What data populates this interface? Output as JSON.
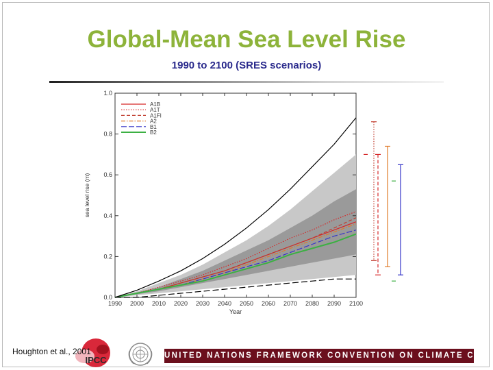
{
  "slide": {
    "title": "Global-Mean Sea Level Rise",
    "subtitle": "1990 to 2100 (SRES scenarios)",
    "reference": "Houghton et al., 2001",
    "logo_text": "IPCC",
    "footer_text": "UNITED NATIONS FRAMEWORK CONVENTION ON CLIMATE CHANGE"
  },
  "colors": {
    "title": "#8db33a",
    "subtitle": "#2a2a8c",
    "footer_band": "#6b0f1d",
    "envelope_outer": "#c8c8c8",
    "envelope_inner": "#9a9a9a",
    "A1B": "#d62728",
    "A1T": "#d62728",
    "A1FI": "#c0392b",
    "A2": "#e07b2a",
    "B1": "#3535c8",
    "B2": "#3cb043"
  },
  "chart_data": {
    "type": "line",
    "title": "",
    "xlabel": "Year",
    "ylabel": "sea level rise (m)",
    "xlim": [
      1990,
      2100
    ],
    "ylim": [
      0.0,
      1.0
    ],
    "xticks": [
      "1990",
      "2000",
      "2010",
      "2020",
      "2030",
      "2040",
      "2050",
      "2060",
      "2070",
      "2080",
      "2090",
      "2100"
    ],
    "yticks": [
      "0.0",
      "0.2",
      "0.4",
      "0.6",
      "0.8",
      "1.0"
    ],
    "legend_position": "top-left",
    "x": [
      1990,
      2000,
      2010,
      2020,
      2030,
      2040,
      2050,
      2060,
      2070,
      2080,
      2090,
      2100
    ],
    "series": [
      {
        "name": "A1B",
        "style": "solid",
        "color": "#d62728",
        "values": [
          0,
          0.02,
          0.04,
          0.07,
          0.1,
          0.13,
          0.17,
          0.21,
          0.25,
          0.29,
          0.33,
          0.37
        ]
      },
      {
        "name": "A1T",
        "style": "dotted",
        "color": "#d62728",
        "values": [
          0,
          0.02,
          0.05,
          0.08,
          0.11,
          0.15,
          0.19,
          0.24,
          0.29,
          0.33,
          0.38,
          0.42
        ]
      },
      {
        "name": "A1FI",
        "style": "dashed",
        "color": "#c0392b",
        "values": [
          0,
          0.02,
          0.04,
          0.07,
          0.1,
          0.13,
          0.17,
          0.21,
          0.25,
          0.29,
          0.34,
          0.39
        ]
      },
      {
        "name": "A2",
        "style": "dashdot",
        "color": "#e07b2a",
        "values": [
          0,
          0.02,
          0.04,
          0.06,
          0.09,
          0.12,
          0.16,
          0.2,
          0.24,
          0.28,
          0.32,
          0.36
        ]
      },
      {
        "name": "B1",
        "style": "longdash",
        "color": "#3535c8",
        "values": [
          0,
          0.02,
          0.04,
          0.06,
          0.09,
          0.12,
          0.15,
          0.18,
          0.22,
          0.26,
          0.3,
          0.33
        ]
      },
      {
        "name": "B2",
        "style": "solid",
        "color": "#3cb043",
        "values": [
          0,
          0.02,
          0.04,
          0.06,
          0.08,
          0.11,
          0.14,
          0.17,
          0.21,
          0.24,
          0.27,
          0.31
        ]
      }
    ],
    "envelope_outer_upper": [
      0,
      0.03,
      0.07,
      0.11,
      0.16,
      0.22,
      0.28,
      0.35,
      0.43,
      0.52,
      0.61,
      0.7
    ],
    "envelope_outer_lower": [
      0,
      0.01,
      0.02,
      0.03,
      0.04,
      0.05,
      0.06,
      0.07,
      0.08,
      0.09,
      0.1,
      0.11
    ],
    "envelope_inner_upper": [
      0,
      0.025,
      0.05,
      0.09,
      0.13,
      0.18,
      0.23,
      0.28,
      0.34,
      0.4,
      0.47,
      0.53
    ],
    "envelope_inner_lower": [
      0,
      0.015,
      0.03,
      0.05,
      0.07,
      0.09,
      0.11,
      0.13,
      0.15,
      0.17,
      0.19,
      0.21
    ],
    "upper_bound_line": [
      0,
      0.035,
      0.08,
      0.13,
      0.19,
      0.26,
      0.34,
      0.43,
      0.53,
      0.64,
      0.75,
      0.88
    ],
    "lower_bound_line": [
      0,
      0.0,
      0.01,
      0.02,
      0.03,
      0.04,
      0.05,
      0.06,
      0.07,
      0.08,
      0.09,
      0.09
    ],
    "range_bars": [
      {
        "name": "A1FI",
        "color": "#c0392b",
        "style": "dotted",
        "min": 0.18,
        "max": 0.86
      },
      {
        "name": "A1B",
        "color": "#d62728",
        "style": "dashed",
        "min": 0.11,
        "max": 0.7
      },
      {
        "name": "A2",
        "color": "#e07b2a",
        "style": "solid",
        "min": 0.15,
        "max": 0.74
      },
      {
        "name": "B1",
        "color": "#3535c8",
        "style": "solid",
        "min": 0.11,
        "max": 0.65
      }
    ],
    "range_markers": [
      {
        "color": "#d62728",
        "value": 0.7
      },
      {
        "color": "#3cb043",
        "value": 0.57
      },
      {
        "color": "#3cb043",
        "value": 0.08
      }
    ]
  }
}
